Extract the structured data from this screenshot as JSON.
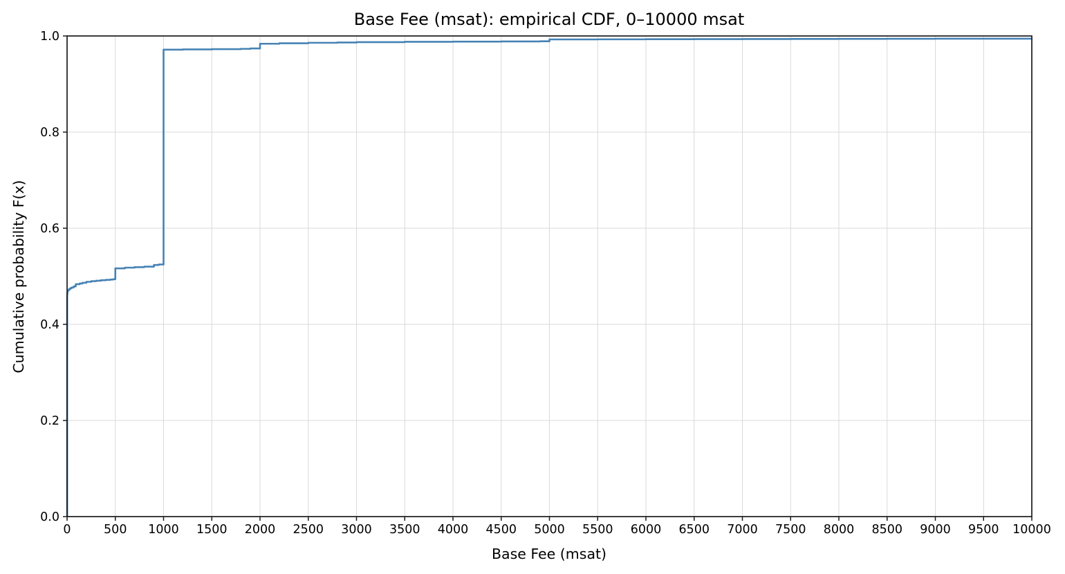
{
  "figure": {
    "title": "Base Fee (msat): empirical CDF, 0–10000 msat",
    "xlabel": "Base Fee (msat)",
    "ylabel": "Cumulative probability F(x)",
    "colors": {
      "line": "#4682B4",
      "grid": "#d9d9d9",
      "spine": "#1a1a1a",
      "tick": "#1a1a1a",
      "text": "#000000",
      "background": "#ffffff"
    }
  },
  "chart_data": {
    "type": "line",
    "subtype": "empirical-cdf-step",
    "title": "Base Fee (msat): empirical CDF, 0–10000 msat",
    "xlabel": "Base Fee (msat)",
    "ylabel": "Cumulative probability F(x)",
    "xlim": [
      0,
      10000
    ],
    "ylim": [
      0.0,
      1.0
    ],
    "grid": true,
    "legend_position": "none",
    "x_ticks": [
      0,
      500,
      1000,
      1500,
      2000,
      2500,
      3000,
      3500,
      4000,
      4500,
      5000,
      5500,
      6000,
      6500,
      7000,
      7500,
      8000,
      8500,
      9000,
      9500,
      10000
    ],
    "y_ticks": [
      "0.0",
      "0.2",
      "0.4",
      "0.6",
      "0.8",
      "1.0"
    ],
    "y_tick_values": [
      0.0,
      0.2,
      0.4,
      0.6,
      0.8,
      1.0
    ],
    "series": [
      {
        "name": "empirical CDF",
        "color": "#4682B4",
        "line_width": 2.6,
        "points": [
          [
            0,
            0.0
          ],
          [
            1,
            0.462
          ],
          [
            3,
            0.466
          ],
          [
            6,
            0.469
          ],
          [
            10,
            0.471
          ],
          [
            20,
            0.4735
          ],
          [
            35,
            0.4755
          ],
          [
            50,
            0.477
          ],
          [
            70,
            0.479
          ],
          [
            90,
            0.4835
          ],
          [
            130,
            0.485
          ],
          [
            160,
            0.4865
          ],
          [
            200,
            0.4885
          ],
          [
            250,
            0.4898
          ],
          [
            300,
            0.4908
          ],
          [
            350,
            0.4918
          ],
          [
            400,
            0.4926
          ],
          [
            450,
            0.4933
          ],
          [
            480,
            0.494
          ],
          [
            500,
            0.5165
          ],
          [
            600,
            0.518
          ],
          [
            700,
            0.519
          ],
          [
            800,
            0.52
          ],
          [
            900,
            0.5235
          ],
          [
            950,
            0.5245
          ],
          [
            1000,
            0.9715
          ],
          [
            1200,
            0.972
          ],
          [
            1500,
            0.9725
          ],
          [
            1800,
            0.9732
          ],
          [
            1900,
            0.974
          ],
          [
            2000,
            0.9838
          ],
          [
            2200,
            0.9848
          ],
          [
            2500,
            0.9858
          ],
          [
            2800,
            0.9864
          ],
          [
            3000,
            0.9872
          ],
          [
            3500,
            0.9878
          ],
          [
            4000,
            0.9882
          ],
          [
            4500,
            0.9886
          ],
          [
            4900,
            0.989
          ],
          [
            5000,
            0.9928
          ],
          [
            5500,
            0.993
          ],
          [
            6000,
            0.9932
          ],
          [
            6500,
            0.9934
          ],
          [
            7000,
            0.9936
          ],
          [
            7500,
            0.9938
          ],
          [
            8000,
            0.994
          ],
          [
            8500,
            0.9941
          ],
          [
            9000,
            0.9943
          ],
          [
            9500,
            0.9944
          ],
          [
            10000,
            0.9945
          ]
        ]
      }
    ]
  }
}
